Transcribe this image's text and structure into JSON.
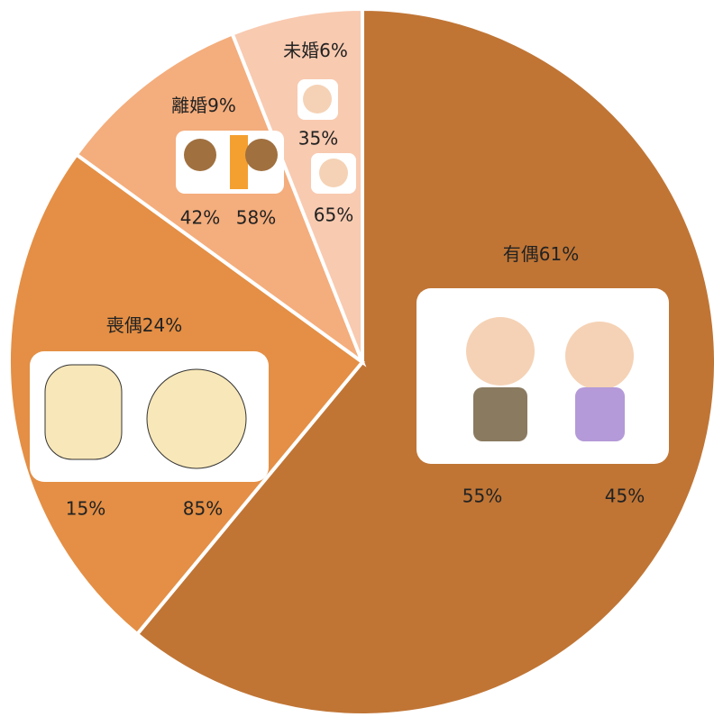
{
  "chart_data": {
    "type": "pie",
    "categories": [
      "有偶",
      "喪偶",
      "離婚",
      "未婚"
    ],
    "values": [
      61,
      24,
      9,
      6
    ],
    "value_labels": [
      "61%",
      "24%",
      "9%",
      "6%"
    ],
    "colors": [
      "#c07535",
      "#e48f45",
      "#f4ad7c",
      "#f8cab0"
    ],
    "breakdown": [
      {
        "values": [
          55,
          45
        ],
        "value_labels": [
          "55%",
          "45%"
        ]
      },
      {
        "values": [
          15,
          85
        ],
        "value_labels": [
          "15%",
          "85%"
        ]
      },
      {
        "values": [
          42,
          58
        ],
        "value_labels": [
          "42%",
          "58%"
        ]
      },
      {
        "values": [
          35,
          65
        ],
        "value_labels": [
          "35%",
          "65%"
        ]
      }
    ]
  }
}
